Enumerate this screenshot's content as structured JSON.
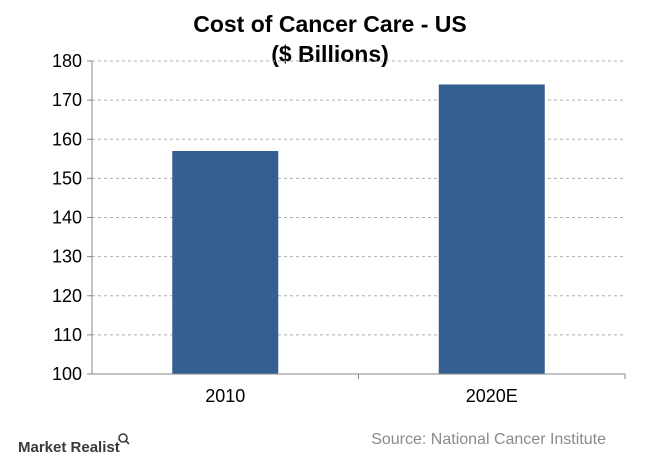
{
  "chart_data": {
    "type": "bar",
    "title": [
      "Cost of Cancer Care - US",
      "($ Billions)"
    ],
    "categories": [
      "2010",
      "2020E"
    ],
    "values": [
      157,
      174
    ],
    "ylim": [
      100,
      180
    ],
    "yticks": [
      100,
      110,
      120,
      130,
      140,
      150,
      160,
      170,
      180
    ],
    "ytick_labels": [
      "100",
      "110",
      "120",
      "130",
      "140",
      "150",
      "160",
      "170",
      "180"
    ],
    "xlabel": "",
    "ylabel": "",
    "grid": "horizontal dashed",
    "bar_color": "#365F91",
    "grid_color": "#b0b0b0",
    "axis_color": "#888888"
  },
  "footer": {
    "brand_text": "Market Realist",
    "brand_icon": "magnifier-icon",
    "source": "Source: National Cancer Institute"
  }
}
